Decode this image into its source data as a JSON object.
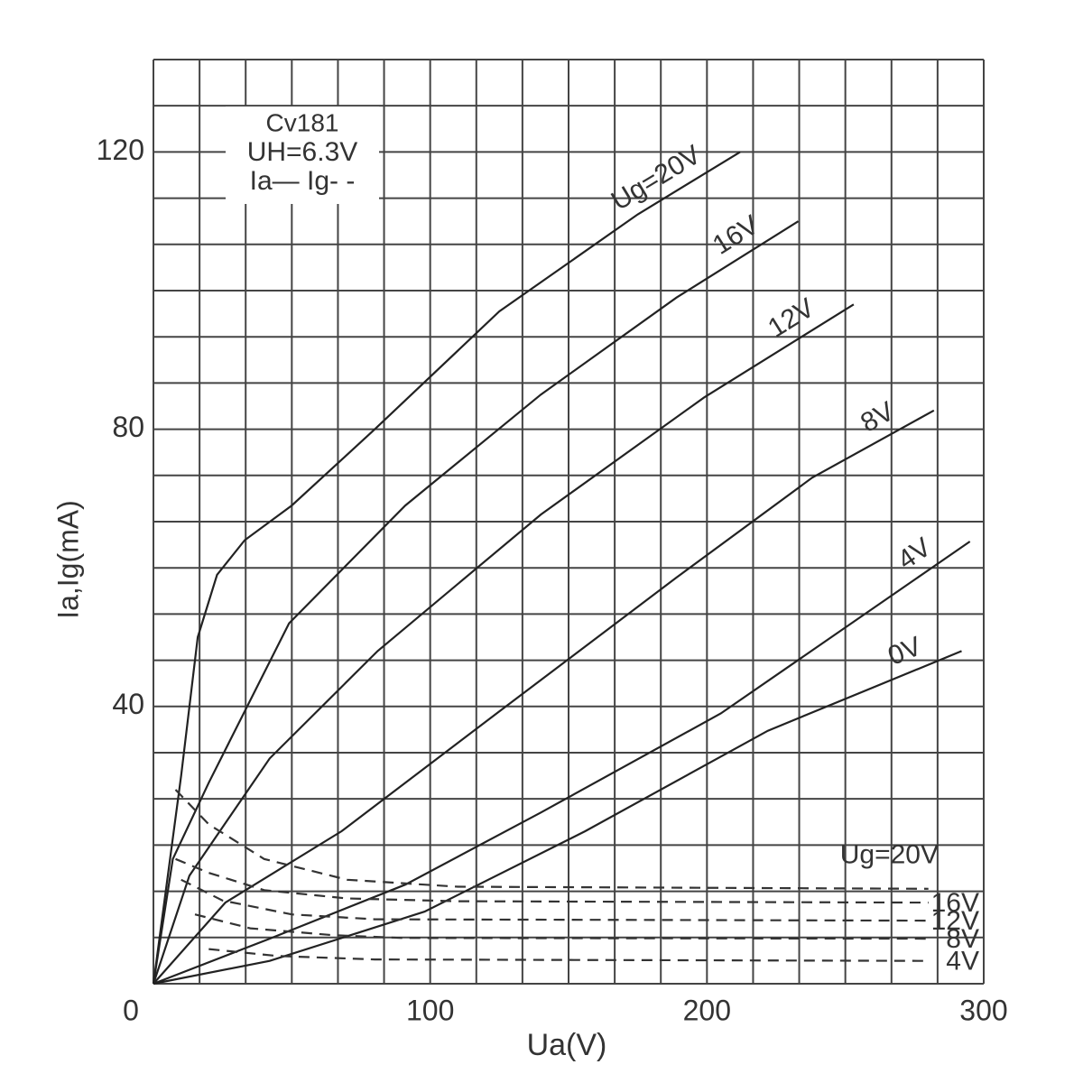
{
  "chart_data": {
    "type": "line",
    "x_label": "Ua(V)",
    "y_label": "Ia,Ig(mA)",
    "annotations": [
      "Cv181",
      "UH=6.3V",
      "Ia— Ig- -"
    ],
    "xlim": [
      0,
      300
    ],
    "ylim": [
      0,
      133.33
    ],
    "xticks": [
      0,
      100,
      200,
      300
    ],
    "yticks": [
      40,
      80,
      120
    ],
    "xminorticks": [
      0,
      16.67,
      33.33,
      50,
      66.67,
      83.33,
      100,
      116.67,
      133.33,
      150,
      166.67,
      183.33,
      200,
      216.67,
      233.33,
      250,
      266.67,
      283.33,
      300
    ],
    "yminorticks": [
      0,
      6.67,
      13.33,
      20,
      26.67,
      33.33,
      40,
      46.67,
      53.33,
      60,
      66.67,
      73.33,
      80,
      86.67,
      93.33,
      100,
      106.67,
      113.33,
      120,
      126.67,
      133.33
    ],
    "grid": true,
    "series": [
      {
        "name": "Ug=20V",
        "color": "#222222",
        "dash": false,
        "x": [
          0,
          10,
          16,
          23,
          33,
          50,
          80,
          125,
          175,
          212
        ],
        "values": [
          0,
          30,
          50,
          59,
          64,
          69,
          80,
          97,
          111,
          120
        ]
      },
      {
        "name": "16V",
        "color": "#222222",
        "dash": false,
        "x": [
          0,
          7,
          20,
          49,
          91,
          140,
          189,
          233
        ],
        "values": [
          0,
          18,
          29,
          52,
          69,
          85,
          99,
          110
        ]
      },
      {
        "name": "12V",
        "color": "#222222",
        "dash": false,
        "x": [
          0,
          13,
          42,
          81,
          140,
          199,
          253
        ],
        "values": [
          0,
          15.6,
          32.5,
          48,
          67.7,
          84.6,
          98
        ]
      },
      {
        "name": "8V",
        "color": "#222222",
        "dash": false,
        "x": [
          0,
          26,
          68,
          124,
          189,
          238,
          282
        ],
        "values": [
          0,
          11.7,
          22,
          39,
          58.6,
          73,
          82.7
        ]
      },
      {
        "name": "4V",
        "color": "#222222",
        "dash": false,
        "x": [
          0,
          42,
          91,
          140,
          205,
          295
        ],
        "values": [
          0,
          6.5,
          14.3,
          24.7,
          39,
          63.8
        ]
      },
      {
        "name": "0V",
        "color": "#222222",
        "dash": false,
        "x": [
          0,
          42,
          98,
          156,
          222,
          292
        ],
        "values": [
          0,
          3.3,
          10.4,
          22,
          36.5,
          48
        ]
      },
      {
        "name": "Ug=20V",
        "color": "#333333",
        "dash": true,
        "x": [
          8,
          20,
          40,
          70,
          110,
          280
        ],
        "values": [
          28,
          23,
          18,
          15,
          14,
          13.7
        ]
      },
      {
        "name": "16V",
        "color": "#333333",
        "dash": true,
        "x": [
          8,
          20,
          40,
          70,
          110,
          280
        ],
        "values": [
          18,
          16,
          13.5,
          12.3,
          11.9,
          11.7
        ]
      },
      {
        "name": "12V",
        "color": "#333333",
        "dash": true,
        "x": [
          10,
          25,
          50,
          80,
          280
        ],
        "values": [
          15,
          12,
          10,
          9.3,
          9.1
        ]
      },
      {
        "name": "8V",
        "color": "#333333",
        "dash": true,
        "x": [
          15,
          35,
          65,
          90,
          280
        ],
        "values": [
          10,
          8,
          7,
          6.6,
          6.5
        ]
      },
      {
        "name": "4V",
        "color": "#333333",
        "dash": true,
        "x": [
          20,
          45,
          80,
          280
        ],
        "values": [
          5,
          4,
          3.5,
          3.3
        ]
      }
    ]
  }
}
